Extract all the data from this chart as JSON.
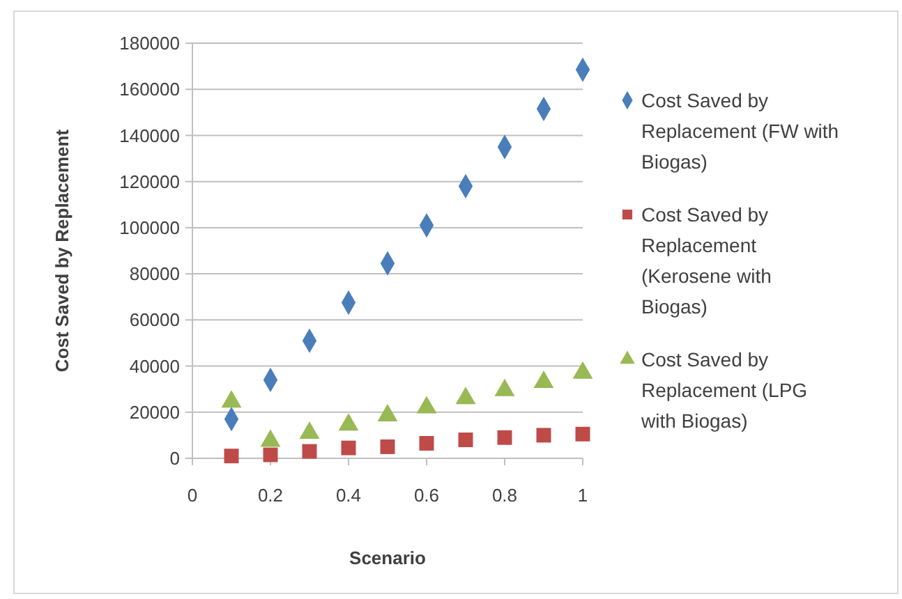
{
  "chart_data": {
    "type": "scatter",
    "xlabel": "Scenario",
    "ylabel": "Cost Saved by Replacement",
    "x": [
      0.1,
      0.2,
      0.3,
      0.4,
      0.5,
      0.6,
      0.7,
      0.8,
      0.9,
      1
    ],
    "series": [
      {
        "name": "Cost Saved by Replacement (FW with Biogas)",
        "color": "#4a7ebb",
        "marker": "diamond",
        "values": [
          17000,
          34000,
          51000,
          67500,
          84500,
          101000,
          118000,
          135000,
          151500,
          168500
        ]
      },
      {
        "name": "Cost Saved by Replacement (Kerosene with Biogas)",
        "color": "#be4b48",
        "marker": "square",
        "values": [
          1000,
          1500,
          3000,
          4500,
          5000,
          6500,
          8000,
          9000,
          10000,
          10500
        ]
      },
      {
        "name": "Cost Saved by Replacement (LPG with Biogas)",
        "color": "#98b954",
        "marker": "triangle",
        "values": [
          24500,
          7500,
          11000,
          14500,
          18500,
          22000,
          26000,
          29500,
          33000,
          37000
        ]
      }
    ],
    "xlim": [
      0,
      1
    ],
    "xticks": [
      0,
      0.2,
      0.4,
      0.6,
      0.8,
      1
    ],
    "ylim": [
      0,
      180000
    ],
    "yticks": [
      0,
      20000,
      40000,
      60000,
      80000,
      100000,
      120000,
      140000,
      160000,
      180000
    ],
    "grid": "y",
    "legend": "right"
  }
}
